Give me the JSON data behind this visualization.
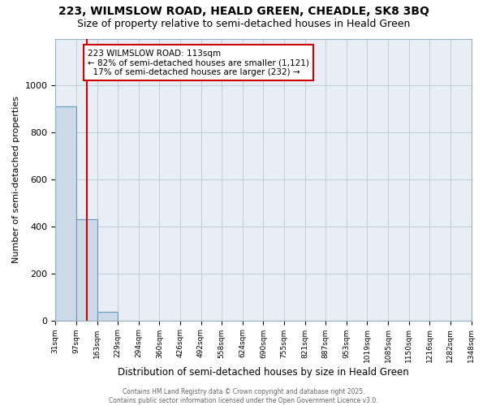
{
  "title_line1": "223, WILMSLOW ROAD, HEALD GREEN, CHEADLE, SK8 3BQ",
  "title_line2": "Size of property relative to semi-detached houses in Heald Green",
  "xlabel": "Distribution of semi-detached houses by size in Heald Green",
  "ylabel": "Number of semi-detached properties",
  "bar_heights": [
    910,
    430,
    35,
    0,
    0,
    0,
    0,
    0,
    0,
    0,
    0,
    0,
    0,
    0,
    0,
    0,
    0,
    0,
    0,
    0
  ],
  "bar_color": "#ccd9e8",
  "bar_edge_color": "#6699bb",
  "property_line_x": 1.0,
  "property_line_color": "#cc0000",
  "annotation_text": "223 WILMSLOW ROAD: 113sqm\n← 82% of semi-detached houses are smaller (1,121)\n  17% of semi-detached houses are larger (232) →",
  "annotation_box_color": "#cc0000",
  "ylim": [
    0,
    1200
  ],
  "yticks": [
    0,
    200,
    400,
    600,
    800,
    1000
  ],
  "tick_labels": [
    "31sqm",
    "97sqm",
    "163sqm",
    "229sqm",
    "294sqm",
    "360sqm",
    "426sqm",
    "492sqm",
    "558sqm",
    "624sqm",
    "690sqm",
    "755sqm",
    "821sqm",
    "887sqm",
    "953sqm",
    "1019sqm",
    "1085sqm",
    "1150sqm",
    "1216sqm",
    "1282sqm",
    "1348sqm"
  ],
  "footer_text": "Contains HM Land Registry data © Crown copyright and database right 2025.\nContains public sector information licensed under the Open Government Licence v3.0.",
  "background_color": "#ffffff",
  "plot_bg_color": "#e8eef5",
  "grid_color": "#c0cdd8",
  "title_fontsize": 10,
  "subtitle_fontsize": 9,
  "annotation_fontsize": 7.5
}
